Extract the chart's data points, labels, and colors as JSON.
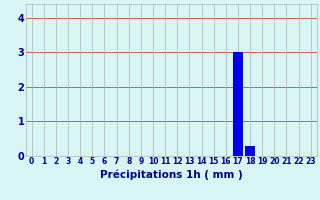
{
  "hours": [
    0,
    1,
    2,
    3,
    4,
    5,
    6,
    7,
    8,
    9,
    10,
    11,
    12,
    13,
    14,
    15,
    16,
    17,
    18,
    19,
    20,
    21,
    22,
    23
  ],
  "values": [
    0,
    0,
    0,
    0,
    0,
    0,
    0,
    0,
    0,
    0,
    0,
    0,
    0,
    0,
    0,
    0,
    0,
    3.0,
    0.3,
    0,
    0,
    0,
    0,
    0
  ],
  "bar_color": "#0000ee",
  "background_color": "#d8f5f5",
  "grid_color": "#b0b0b0",
  "grid_color_h": "#cc4444",
  "xlabel": "Précipitations 1h ( mm )",
  "xlabel_color": "#00008b",
  "xlabel_fontsize": 7.5,
  "tick_color": "#00008b",
  "tick_fontsize": 5.5,
  "ytick_fontsize": 7,
  "ylim": [
    0,
    4.4
  ],
  "yticks": [
    0,
    1,
    2,
    3,
    4
  ],
  "bar_width": 0.85
}
